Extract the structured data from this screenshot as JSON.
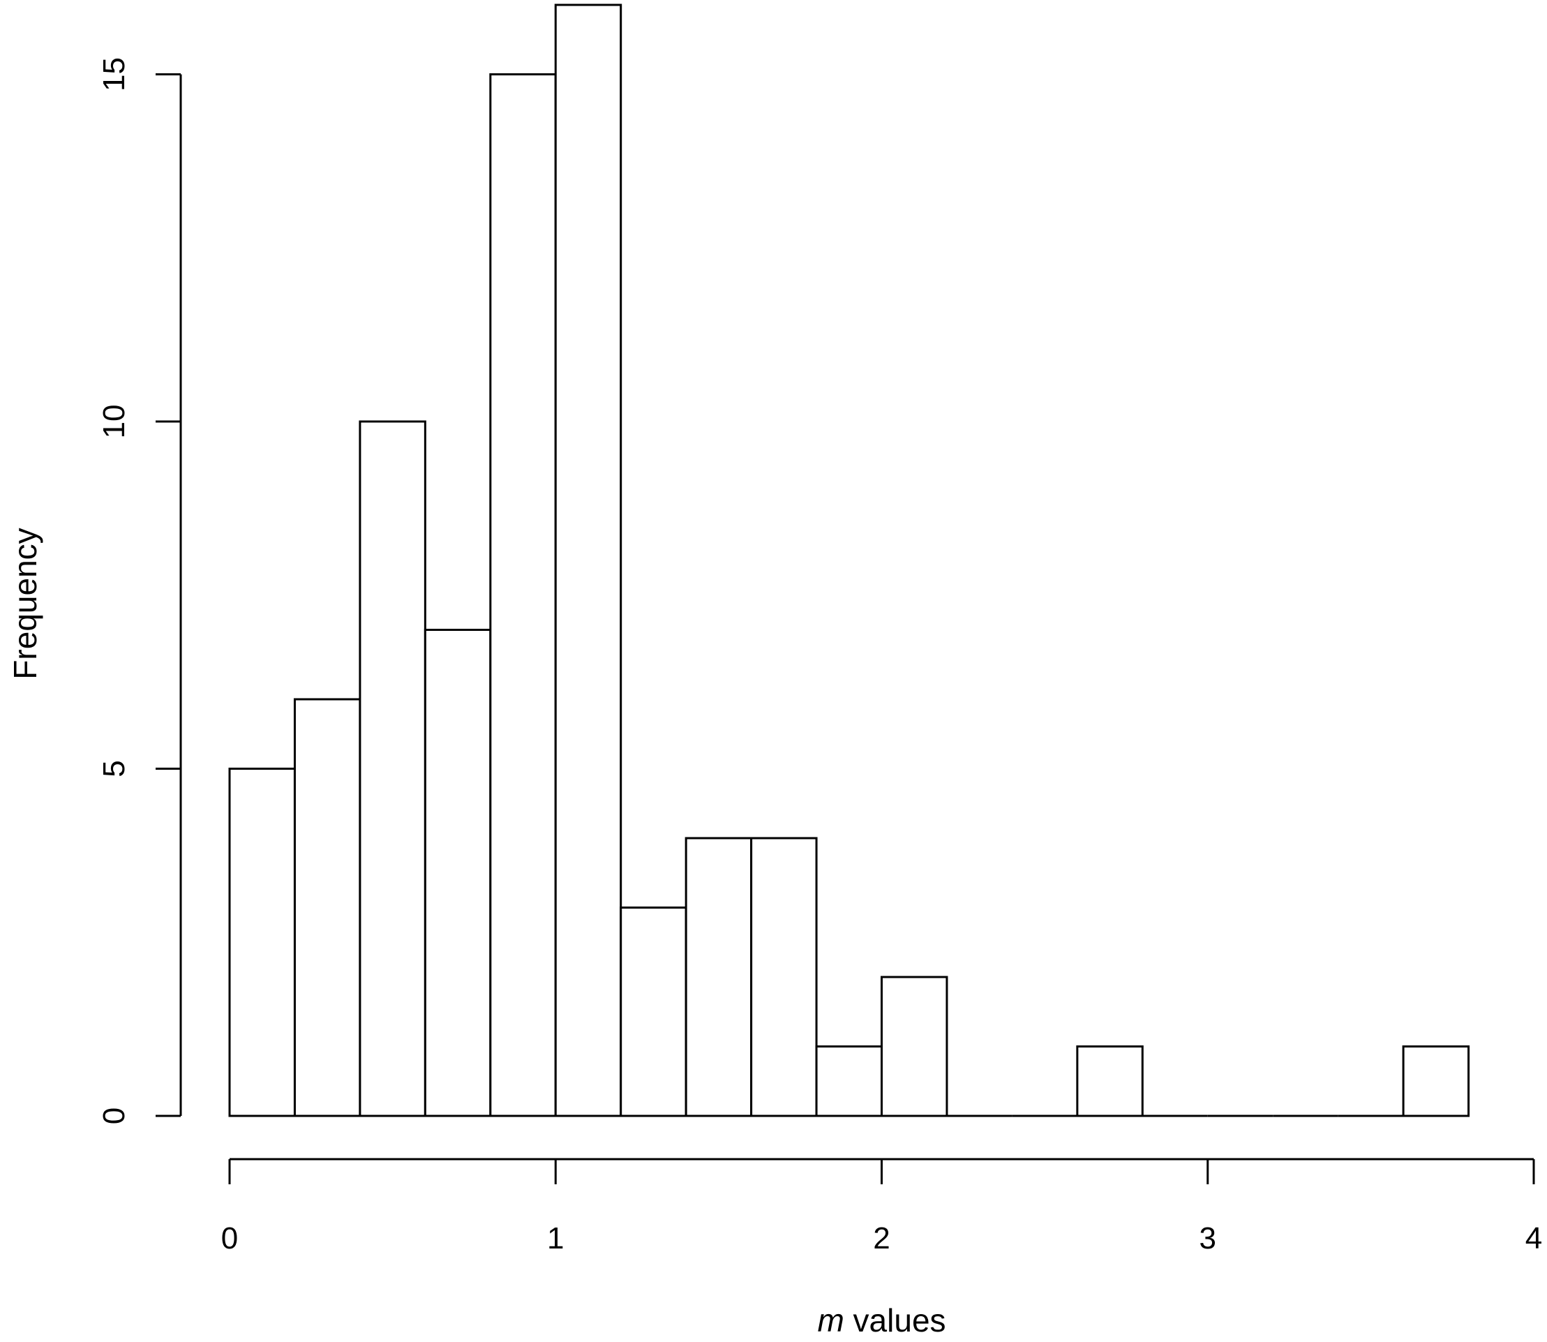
{
  "chart_data": {
    "type": "bar",
    "subtype": "histogram",
    "bins": [
      {
        "start": 0.0,
        "end": 0.2,
        "count": 5
      },
      {
        "start": 0.2,
        "end": 0.4,
        "count": 6
      },
      {
        "start": 0.4,
        "end": 0.6,
        "count": 10
      },
      {
        "start": 0.6,
        "end": 0.8,
        "count": 7
      },
      {
        "start": 0.8,
        "end": 1.0,
        "count": 15
      },
      {
        "start": 1.0,
        "end": 1.2,
        "count": 16
      },
      {
        "start": 1.2,
        "end": 1.4,
        "count": 3
      },
      {
        "start": 1.4,
        "end": 1.6,
        "count": 4
      },
      {
        "start": 1.6,
        "end": 1.8,
        "count": 4
      },
      {
        "start": 1.8,
        "end": 2.0,
        "count": 1
      },
      {
        "start": 2.0,
        "end": 2.2,
        "count": 2
      },
      {
        "start": 2.2,
        "end": 2.4,
        "count": 0
      },
      {
        "start": 2.4,
        "end": 2.6,
        "count": 0
      },
      {
        "start": 2.6,
        "end": 2.8,
        "count": 1
      },
      {
        "start": 2.8,
        "end": 3.0,
        "count": 0
      },
      {
        "start": 3.0,
        "end": 3.2,
        "count": 0
      },
      {
        "start": 3.2,
        "end": 3.4,
        "count": 0
      },
      {
        "start": 3.4,
        "end": 3.6,
        "count": 0
      },
      {
        "start": 3.6,
        "end": 3.8,
        "count": 1
      }
    ],
    "title": "",
    "xlabel_italic": "m",
    "xlabel_rest": " values",
    "ylabel": "Frequency",
    "xlim": [
      0,
      4
    ],
    "ylim": [
      0,
      16
    ],
    "xticks": [
      0,
      1,
      2,
      3,
      4
    ],
    "xtick_labels": [
      "0",
      "1",
      "2",
      "3",
      "4"
    ],
    "yticks": [
      0,
      5,
      10,
      15
    ],
    "ytick_labels": [
      "0",
      "5",
      "10",
      "15"
    ],
    "grid": false,
    "legend": "none"
  }
}
